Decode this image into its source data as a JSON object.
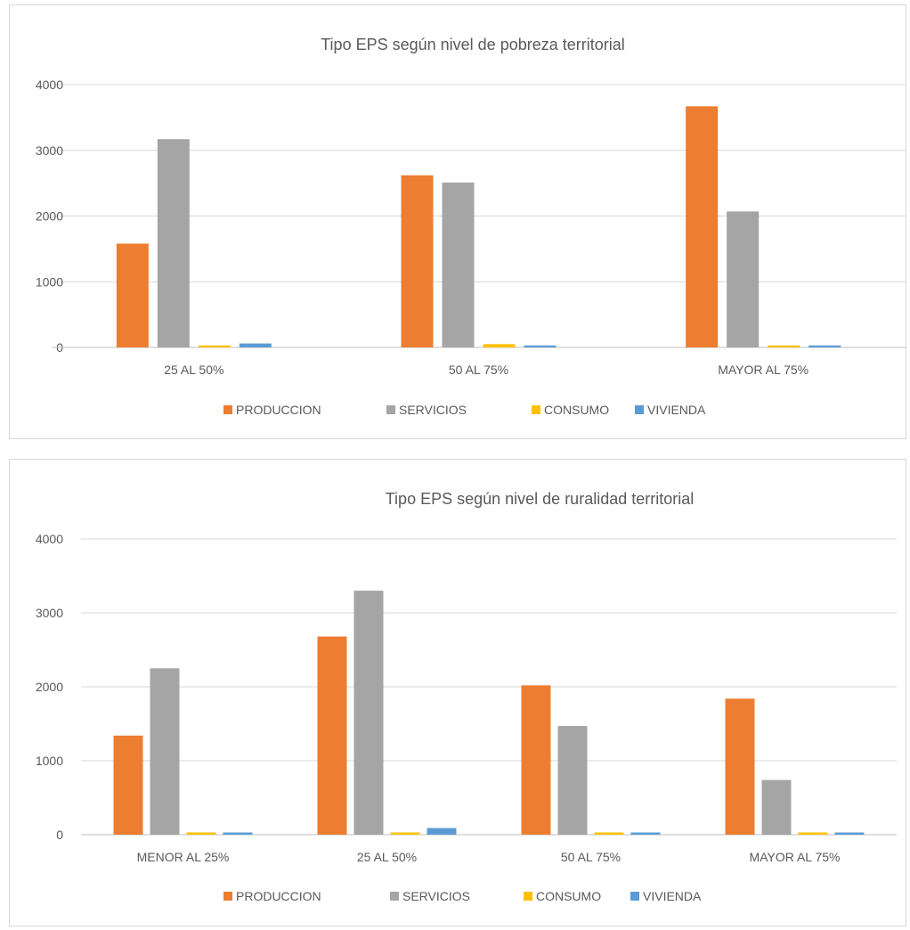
{
  "chart_data": [
    {
      "type": "bar",
      "title": "Tipo EPS según nivel de pobreza territorial",
      "categories": [
        "25 AL 50%",
        "50 AL 75%",
        "MAYOR AL 75%"
      ],
      "series": [
        {
          "name": "PRODUCCION",
          "color": "#ED7D31",
          "values": [
            1580,
            2620,
            3670
          ]
        },
        {
          "name": "SERVICIOS",
          "color": "#A5A5A5",
          "values": [
            3170,
            2510,
            2070
          ]
        },
        {
          "name": "CONSUMO",
          "color": "#FFC000",
          "values": [
            30,
            50,
            30
          ]
        },
        {
          "name": "VIVIENDA",
          "color": "#5B9BD5",
          "values": [
            60,
            30,
            30
          ]
        }
      ],
      "y_ticks": [
        "0",
        "1000",
        "2000",
        "3000",
        "4000"
      ],
      "ylim": [
        0,
        4000
      ],
      "grid": true,
      "legend": "bottom"
    },
    {
      "type": "bar",
      "title": "Tipo EPS según nivel de ruralidad territorial",
      "categories": [
        "MENOR AL 25%",
        "25 AL 50%",
        "50 AL 75%",
        "MAYOR AL 75%"
      ],
      "series": [
        {
          "name": "PRODUCCION",
          "color": "#ED7D31",
          "values": [
            1340,
            2680,
            2020,
            1840
          ]
        },
        {
          "name": "SERVICIOS",
          "color": "#A5A5A5",
          "values": [
            2250,
            3300,
            1470,
            740
          ]
        },
        {
          "name": "CONSUMO",
          "color": "#FFC000",
          "values": [
            30,
            30,
            30,
            30
          ]
        },
        {
          "name": "VIVIENDA",
          "color": "#5B9BD5",
          "values": [
            30,
            90,
            30,
            30
          ]
        }
      ],
      "y_ticks": [
        "0",
        "1000",
        "2000",
        "3000",
        "4000"
      ],
      "ylim": [
        0,
        4000
      ],
      "grid": true,
      "legend": "bottom"
    }
  ]
}
